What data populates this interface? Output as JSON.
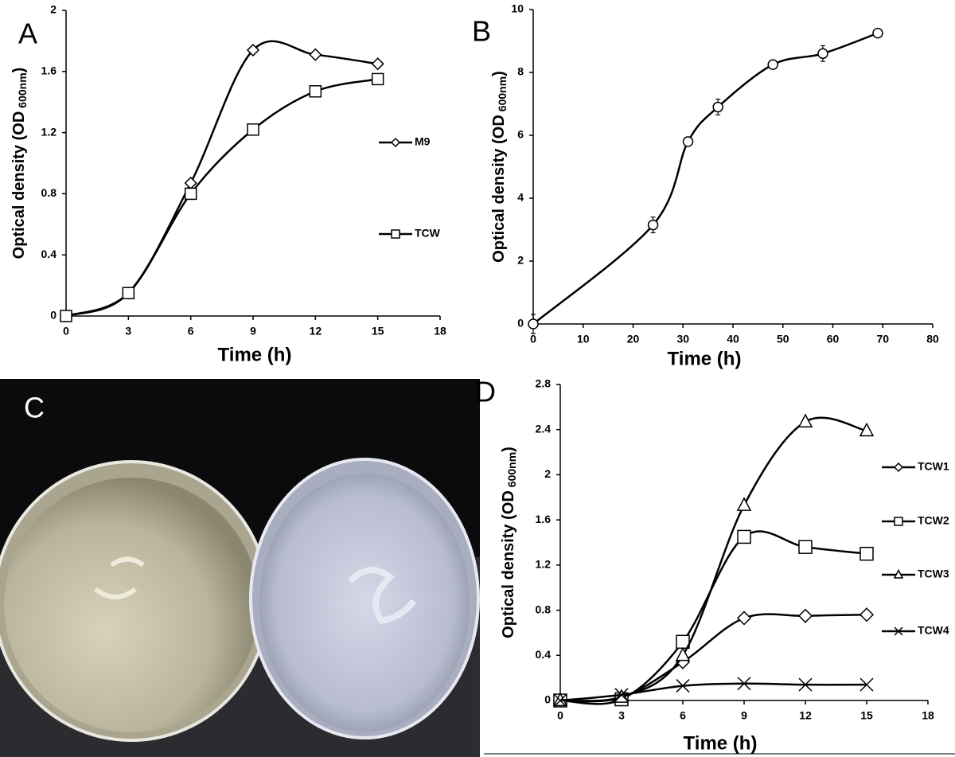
{
  "chart_data": [
    {
      "type": "line",
      "panel": "A",
      "xlabel": "Time (h)",
      "ylabel": {
        "text": "Optical density (OD",
        "subscript": "600nm",
        "suffix": ")"
      },
      "x": [
        0,
        3,
        6,
        9,
        12,
        15
      ],
      "xlim": [
        0,
        18
      ],
      "xticks": [
        0,
        3,
        6,
        9,
        12,
        15,
        18
      ],
      "ylim": [
        0,
        2
      ],
      "yticks": [
        0,
        0.4,
        0.8,
        1.2,
        1.6,
        2
      ],
      "grid": false,
      "smooth": true,
      "series": [
        {
          "name": "M9",
          "color": "#000000",
          "marker": "diamond",
          "values": [
            0,
            0.15,
            0.87,
            1.74,
            1.71,
            1.65
          ]
        },
        {
          "name": "TCW",
          "color": "#000000",
          "marker": "square",
          "values": [
            0,
            0.15,
            0.8,
            1.22,
            1.47,
            1.55
          ]
        }
      ]
    },
    {
      "type": "line",
      "panel": "B",
      "xlabel": "Time (h)",
      "ylabel": {
        "text": "Optical density (OD",
        "subscript": "600nm",
        "suffix": ")"
      },
      "x": [
        0,
        24,
        31,
        37,
        48,
        58,
        69
      ],
      "values": [
        0,
        3.15,
        5.8,
        6.9,
        8.25,
        8.6,
        9.25
      ],
      "errors": [
        0.3,
        0.25,
        0.05,
        0.25,
        0.12,
        0.25,
        0.05
      ],
      "color": "#000000",
      "marker": "circle",
      "xlim": [
        0,
        80
      ],
      "xticks": [
        0,
        10,
        20,
        30,
        40,
        50,
        60,
        70,
        80
      ],
      "ylim": [
        0,
        10
      ],
      "yticks": [
        0,
        2,
        4,
        6,
        8,
        10
      ],
      "grid": false,
      "smooth": true
    },
    {
      "type": "line",
      "panel": "D",
      "xlabel": "Time (h)",
      "ylabel": {
        "text": "Optical density (OD",
        "subscript": "600nm",
        "suffix": ")"
      },
      "x": [
        0,
        3,
        6,
        9,
        12,
        15
      ],
      "xlim": [
        0,
        18
      ],
      "xticks": [
        0,
        3,
        6,
        9,
        12,
        15,
        18
      ],
      "ylim": [
        0,
        2.8
      ],
      "yticks": [
        0,
        0.4,
        0.8,
        1.2,
        1.6,
        2,
        2.4,
        2.8
      ],
      "grid": false,
      "smooth": true,
      "series": [
        {
          "name": "TCW1",
          "color": "#000000",
          "marker": "diamond",
          "values": [
            0,
            0.03,
            0.34,
            0.73,
            0.75,
            0.76
          ]
        },
        {
          "name": "TCW2",
          "color": "#000000",
          "marker": "square",
          "values": [
            0,
            0.01,
            0.52,
            1.45,
            1.36,
            1.3
          ]
        },
        {
          "name": "TCW3",
          "color": "#000000",
          "marker": "triangle",
          "values": [
            0,
            0.03,
            0.4,
            1.73,
            2.47,
            2.39
          ]
        },
        {
          "name": "TCW4",
          "color": "#000000",
          "marker": "x",
          "values": [
            0,
            0.05,
            0.13,
            0.15,
            0.14,
            0.14
          ]
        }
      ]
    }
  ],
  "photo": {
    "label": "C"
  }
}
